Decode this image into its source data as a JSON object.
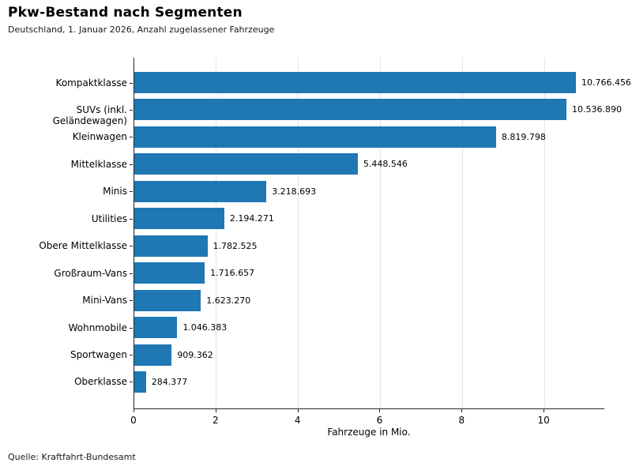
{
  "chart_data": {
    "type": "bar",
    "orientation": "horizontal",
    "title": "Pkw-Bestand nach Segmenten",
    "subtitle": "Deutschland, 1. Januar 2026, Anzahl zugelassener Fahrzeuge",
    "xlabel": "Fahrzeuge in Mio.",
    "source_note": "Quelle: Kraftfahrt-Bundesamt",
    "categories": [
      "Kompaktklasse",
      "SUVs (inkl. Geländewagen)",
      "Kleinwagen",
      "Mittelklasse",
      "Minis",
      "Utilities",
      "Obere Mittelklasse",
      "Großraum-Vans",
      "Mini-Vans",
      "Wohnmobile",
      "Sportwagen",
      "Oberklasse"
    ],
    "values": [
      10766456,
      10536890,
      8819798,
      5448546,
      3218693,
      2194271,
      1782525,
      1716657,
      1623270,
      1046383,
      909362,
      284377
    ],
    "value_labels": [
      "10.766.456",
      "10.536.890",
      "8.819.798",
      "5.448.546",
      "3.218.693",
      "2.194.271",
      "1.782.525",
      "1.716.657",
      "1.623.270",
      "1.046.383",
      "909.362",
      "284.377"
    ],
    "xticks": [
      0,
      2,
      4,
      6,
      8,
      10
    ],
    "xtick_labels": [
      "0",
      "2",
      "4",
      "6",
      "8",
      "10"
    ],
    "xlim": [
      0,
      11.48
    ],
    "grid": "vertical",
    "legend_position": "none",
    "colors": {
      "bar": "#1f77b4",
      "grid": "#e4e4e4",
      "spine": "#262626",
      "text": "#000000"
    }
  }
}
